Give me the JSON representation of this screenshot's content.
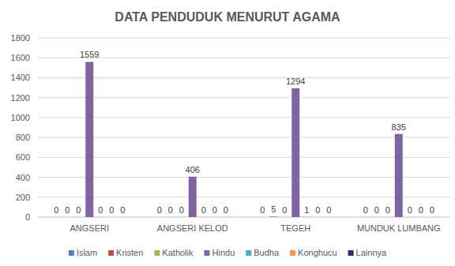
{
  "chart_data": {
    "type": "bar",
    "title": "DATA PENDUDUK MENURUT AGAMA",
    "categories": [
      "ANGSERI",
      "ANGSERI KELOD",
      "TEGEH",
      "MUNDUK LUMBANG"
    ],
    "series": [
      {
        "name": "Islam",
        "color": "#4f81bd",
        "values": [
          0,
          0,
          0,
          0
        ]
      },
      {
        "name": "Kristen",
        "color": "#c0504d",
        "values": [
          0,
          0,
          5,
          0
        ]
      },
      {
        "name": "Katholik",
        "color": "#9bbb59",
        "values": [
          0,
          0,
          0,
          0
        ]
      },
      {
        "name": "Hindu",
        "color": "#8064a2",
        "values": [
          1559,
          406,
          1294,
          835
        ]
      },
      {
        "name": "Budha",
        "color": "#4bacc6",
        "values": [
          0,
          0,
          1,
          0
        ]
      },
      {
        "name": "Konghucu",
        "color": "#f79646",
        "values": [
          0,
          0,
          0,
          0
        ]
      },
      {
        "name": "Lainnya",
        "color": "#1f3864",
        "values": [
          0,
          0,
          0,
          0
        ]
      }
    ],
    "ylim": [
      0,
      1800
    ],
    "yticks": [
      0,
      200,
      400,
      600,
      800,
      1000,
      1200,
      1400,
      1600,
      1800
    ],
    "grid": true,
    "legend": "bottom",
    "data_labels": true
  }
}
